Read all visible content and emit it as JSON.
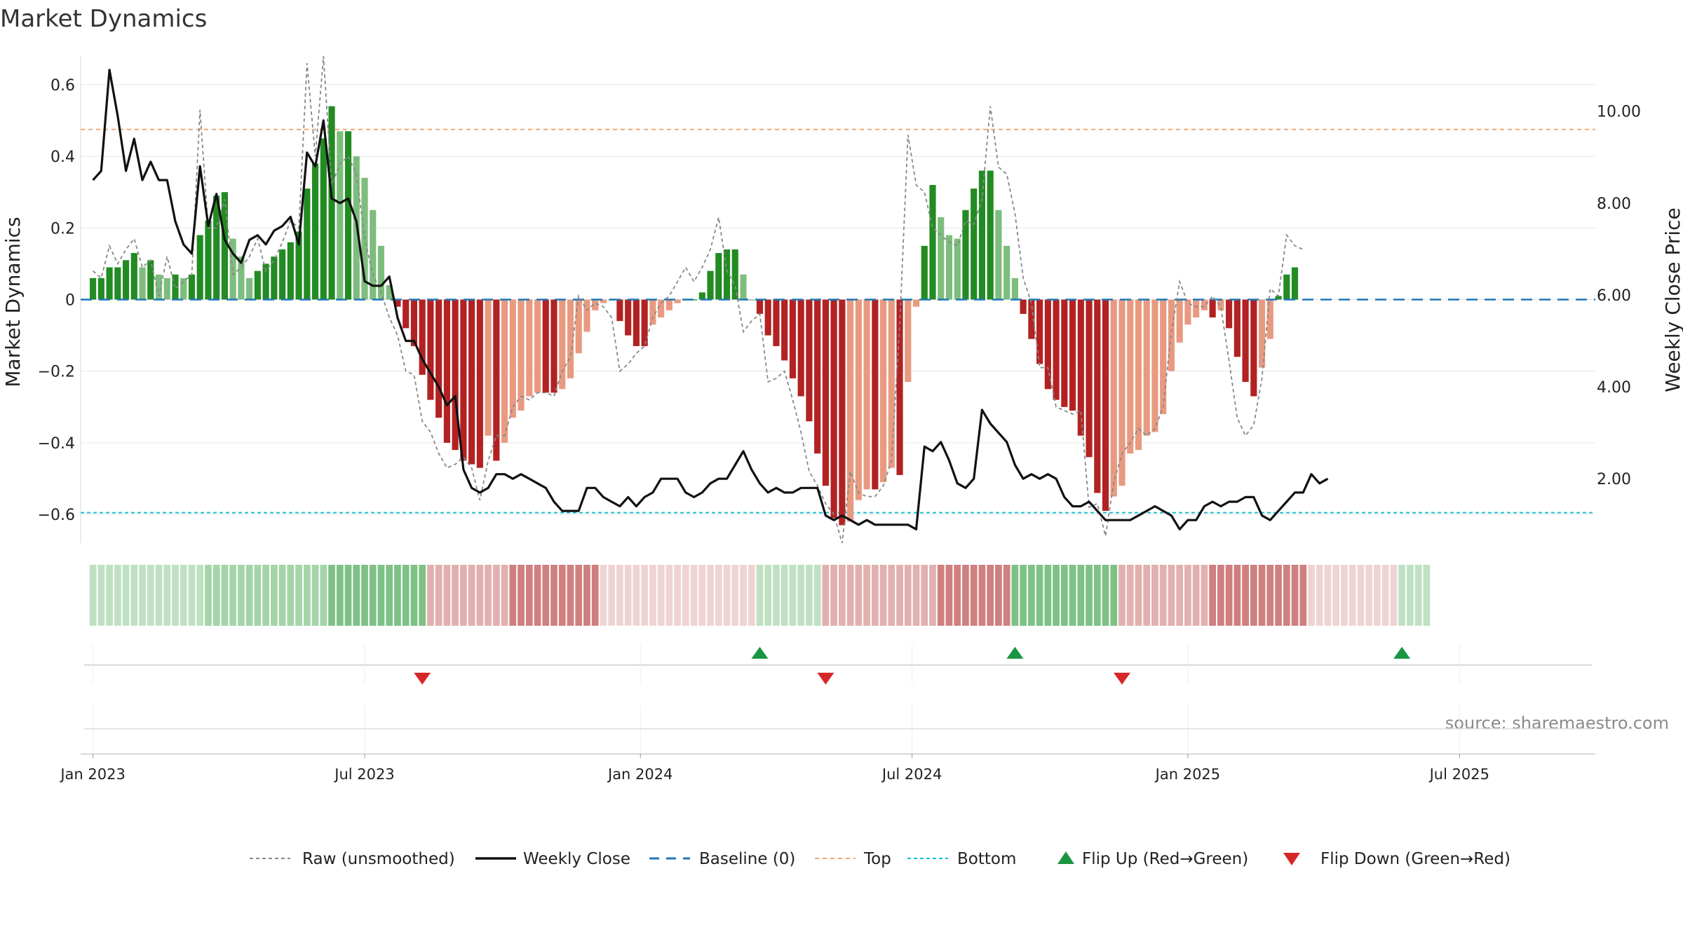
{
  "chart_data": {
    "type": "bar",
    "title": "Market Dynamics",
    "ylabel_left": "Market Dynamics",
    "ylabel_right": "Weekly Close Price",
    "y_left_ticks": [
      0.6,
      0.4,
      0.2,
      0,
      -0.2,
      -0.4,
      -0.6
    ],
    "y_left_tick_labels": [
      "0.6",
      "0.4",
      "0.2",
      "0",
      "−0.2",
      "−0.4",
      "−0.6"
    ],
    "y_left_range": [
      -0.68,
      0.68
    ],
    "y_right_ticks": [
      10,
      8,
      6,
      4,
      2
    ],
    "y_right_tick_labels": [
      "10.00",
      "8.00",
      "6.00",
      "4.00",
      "2.00"
    ],
    "y_right_range": [
      0.6,
      11.2
    ],
    "x_range": [
      -1.5,
      182.5
    ],
    "x_ticks": [
      {
        "label": "Jan 2023",
        "week": 0
      },
      {
        "label": "Jul 2023",
        "week": 33
      },
      {
        "label": "Jan 2024",
        "week": 66.5
      },
      {
        "label": "Jul 2024",
        "week": 99.5
      },
      {
        "label": "Jan 2025",
        "week": 133
      },
      {
        "label": "Jul 2025",
        "week": 166
      }
    ],
    "top_threshold": 0.475,
    "bottom_threshold": -0.595,
    "baseline": 0,
    "values": [
      0.06,
      0.06,
      0.09,
      0.09,
      0.11,
      0.13,
      0.09,
      0.11,
      0.07,
      0.06,
      0.07,
      0.06,
      0.07,
      0.18,
      0.22,
      0.29,
      0.3,
      0.17,
      0.12,
      0.06,
      0.08,
      0.1,
      0.12,
      0.14,
      0.16,
      0.19,
      0.31,
      0.38,
      0.45,
      0.54,
      0.47,
      0.47,
      0.4,
      0.34,
      0.25,
      0.15,
      0.04,
      -0.02,
      -0.08,
      -0.13,
      -0.21,
      -0.28,
      -0.33,
      -0.4,
      -0.42,
      -0.45,
      -0.46,
      -0.47,
      -0.38,
      -0.45,
      -0.4,
      -0.33,
      -0.31,
      -0.27,
      -0.26,
      -0.26,
      -0.26,
      -0.25,
      -0.22,
      -0.15,
      -0.09,
      -0.03,
      -0.01,
      0,
      -0.06,
      -0.1,
      -0.13,
      -0.13,
      -0.07,
      -0.05,
      -0.03,
      -0.01,
      0,
      0,
      0.02,
      0.08,
      0.13,
      0.14,
      0.14,
      0.07,
      0,
      -0.04,
      -0.1,
      -0.13,
      -0.17,
      -0.22,
      -0.27,
      -0.34,
      -0.43,
      -0.52,
      -0.61,
      -0.63,
      -0.62,
      -0.56,
      -0.53,
      -0.53,
      -0.51,
      -0.47,
      -0.49,
      -0.23,
      -0.02,
      0.15,
      0.32,
      0.23,
      0.18,
      0.17,
      0.25,
      0.31,
      0.36,
      0.36,
      0.25,
      0.15,
      0.06,
      -0.04,
      -0.11,
      -0.18,
      -0.25,
      -0.28,
      -0.3,
      -0.31,
      -0.38,
      -0.44,
      -0.54,
      -0.59,
      -0.55,
      -0.52,
      -0.43,
      -0.42,
      -0.38,
      -0.37,
      -0.32,
      -0.2,
      -0.12,
      -0.07,
      -0.05,
      -0.03,
      -0.05,
      -0.03,
      -0.08,
      -0.16,
      -0.23,
      -0.27,
      -0.19,
      -0.11,
      0.01,
      0.07,
      0.09
    ],
    "price": [
      8.5,
      8.7,
      10.9,
      9.9,
      8.7,
      9.4,
      8.5,
      8.9,
      8.5,
      8.5,
      7.6,
      7.1,
      6.9,
      8.8,
      7.5,
      8.2,
      7.2,
      6.9,
      6.7,
      7.2,
      7.3,
      7.1,
      7.4,
      7.5,
      7.7,
      7.1,
      9.1,
      8.8,
      9.8,
      8.1,
      8.0,
      8.1,
      7.6,
      6.3,
      6.2,
      6.2,
      6.4,
      5.5,
      5.0,
      5.0,
      4.6,
      4.3,
      4.0,
      3.6,
      3.8,
      2.2,
      1.8,
      1.7,
      1.8,
      2.1,
      2.1,
      2.0,
      2.1,
      2.0,
      1.9,
      1.8,
      1.5,
      1.3,
      1.3,
      1.3,
      1.8,
      1.8,
      1.6,
      1.5,
      1.4,
      1.6,
      1.4,
      1.6,
      1.7,
      2.0,
      2.0,
      2.0,
      1.7,
      1.6,
      1.7,
      1.9,
      2.0,
      2.0,
      2.3,
      2.6,
      2.2,
      1.9,
      1.7,
      1.8,
      1.7,
      1.7,
      1.8,
      1.8,
      1.8,
      1.2,
      1.1,
      1.2,
      1.1,
      1.0,
      1.1,
      1.0,
      1.0,
      1.0,
      1.0,
      1.0,
      0.9,
      2.7,
      2.6,
      2.8,
      2.4,
      1.9,
      1.8,
      2.0,
      3.5,
      3.2,
      3.0,
      2.8,
      2.3,
      2.0,
      2.1,
      2.0,
      2.1,
      2.0,
      1.6,
      1.4,
      1.4,
      1.5,
      1.3,
      1.1,
      1.1,
      1.1,
      1.1,
      1.2,
      1.3,
      1.4,
      1.3,
      1.2,
      0.9,
      1.1,
      1.1,
      1.4,
      1.5,
      1.4,
      1.5,
      1.5,
      1.6,
      1.6,
      1.2,
      1.1,
      1.3,
      1.5,
      1.7,
      1.7,
      2.1,
      1.9,
      2.0
    ],
    "raw": [
      0.08,
      0.06,
      0.15,
      0.1,
      0.14,
      0.17,
      0.09,
      0.11,
      0.01,
      0.12,
      0.03,
      0.05,
      0.07,
      0.53,
      0.2,
      0.2,
      0.28,
      0.07,
      0.09,
      0.12,
      0.17,
      0.08,
      0.11,
      0.16,
      0.22,
      0.2,
      0.66,
      0.4,
      0.68,
      0.32,
      0.38,
      0.4,
      0.35,
      0.17,
      0.07,
      0.02,
      -0.05,
      -0.1,
      -0.2,
      -0.21,
      -0.34,
      -0.37,
      -0.43,
      -0.47,
      -0.46,
      -0.44,
      -0.47,
      -0.56,
      -0.45,
      -0.38,
      -0.38,
      -0.3,
      -0.27,
      -0.28,
      -0.26,
      -0.26,
      -0.27,
      -0.2,
      -0.16,
      0.01,
      -0.03,
      -0.01,
      -0.02,
      -0.05,
      -0.2,
      -0.18,
      -0.15,
      -0.13,
      -0.05,
      -0.01,
      0.01,
      0.05,
      0.09,
      0.05,
      0.09,
      0.14,
      0.23,
      0.08,
      0.04,
      -0.09,
      -0.06,
      -0.04,
      -0.23,
      -0.22,
      -0.2,
      -0.28,
      -0.37,
      -0.48,
      -0.52,
      -0.57,
      -0.6,
      -0.68,
      -0.48,
      -0.54,
      -0.55,
      -0.55,
      -0.52,
      -0.45,
      -0.07,
      0.46,
      0.32,
      0.3,
      0.2,
      0.18,
      0.16,
      0.15,
      0.22,
      0.21,
      0.28,
      0.54,
      0.37,
      0.35,
      0.24,
      0.06,
      -0.01,
      -0.19,
      -0.19,
      -0.3,
      -0.31,
      -0.32,
      -0.31,
      -0.58,
      -0.57,
      -0.66,
      -0.51,
      -0.43,
      -0.4,
      -0.36,
      -0.38,
      -0.36,
      -0.3,
      -0.09,
      0.05,
      -0.01,
      -0.02,
      -0.02,
      0.01,
      -0.02,
      -0.17,
      -0.33,
      -0.38,
      -0.35,
      -0.22,
      0.03,
      0.01,
      0.18,
      0.15,
      0.14
    ],
    "flip_up_weeks": [
      81,
      112,
      159
    ],
    "flip_down_weeks": [
      40,
      89,
      125
    ],
    "regime_bands": [
      {
        "start": 0,
        "end": 14,
        "tone": "green-1"
      },
      {
        "start": 14,
        "end": 29,
        "tone": "green-2"
      },
      {
        "start": 29,
        "end": 41,
        "tone": "green-3"
      },
      {
        "start": 41,
        "end": 51,
        "tone": "red-2"
      },
      {
        "start": 51,
        "end": 62,
        "tone": "red-3"
      },
      {
        "start": 62,
        "end": 81,
        "tone": "red-1"
      },
      {
        "start": 81,
        "end": 89,
        "tone": "green-1"
      },
      {
        "start": 89,
        "end": 103,
        "tone": "red-2"
      },
      {
        "start": 103,
        "end": 112,
        "tone": "red-3"
      },
      {
        "start": 112,
        "end": 125,
        "tone": "green-3"
      },
      {
        "start": 125,
        "end": 136,
        "tone": "red-2"
      },
      {
        "start": 136,
        "end": 148,
        "tone": "red-3"
      },
      {
        "start": 148,
        "end": 159,
        "tone": "red-1"
      },
      {
        "start": 159,
        "end": 163,
        "tone": "green-1"
      }
    ],
    "legend": [
      {
        "key": "raw",
        "label": "Raw (unsmoothed)"
      },
      {
        "key": "close",
        "label": "Weekly Close"
      },
      {
        "key": "baseline",
        "label": "Baseline (0)"
      },
      {
        "key": "top",
        "label": "Top"
      },
      {
        "key": "bottom",
        "label": "Bottom"
      },
      {
        "key": "flip_up",
        "label": "Flip Up (Red→Green)"
      },
      {
        "key": "flip_down",
        "label": "Flip Down (Green→Red)"
      }
    ],
    "source": "source: sharemaestro.com",
    "colors": {
      "green_strong": "#228b22",
      "green_light": "#7dbd7d",
      "red_strong": "#b22222",
      "red_light": "#e89a80",
      "price_line": "#111111",
      "raw_line": "#888888",
      "baseline": "#1f77b4",
      "top": "#f0a870",
      "bottom": "#17becf",
      "flip_up": "#1a9641",
      "flip_down": "#d62728",
      "grid": "#e6e6e6"
    }
  }
}
